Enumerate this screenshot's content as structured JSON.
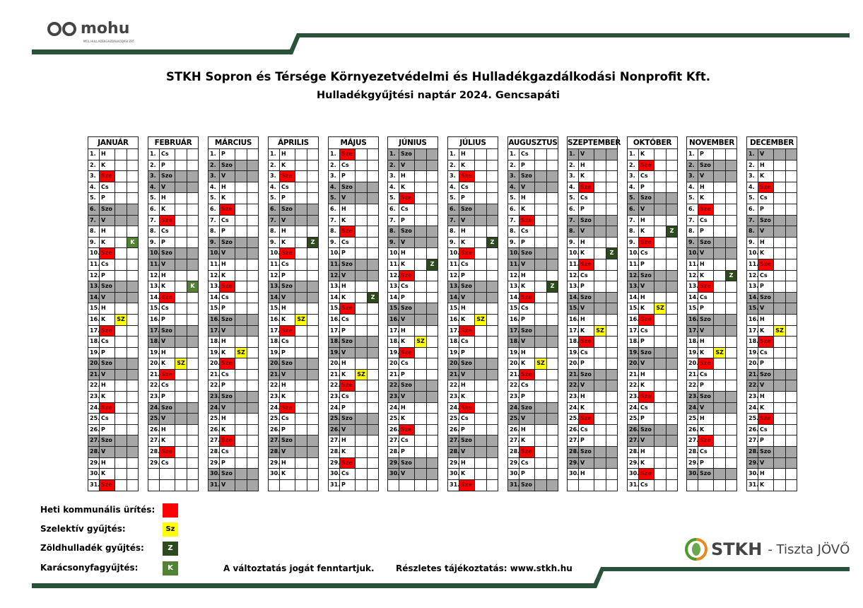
{
  "header": {
    "logo_text": "mohu",
    "logo_subtext": "MOL HULLADÉKGAZDÁLKODÁSI ZRT.",
    "title": "STKH Sopron és Térsége Környezetvédelmi és Hulladékgazdálkodási Nonprofit Kft.",
    "subtitle": "Hulladékgyűjtési naptár 2024. Gencsapáti"
  },
  "weekday_names": [
    "H",
    "K",
    "Sze",
    "Cs",
    "P",
    "Szo",
    "V"
  ],
  "marker_labels": {
    "sz": "SZ",
    "z": "Z",
    "k": "K"
  },
  "colors": {
    "red": "#ff0000",
    "yellow": "#ffff00",
    "dark_green": "#2d4a1e",
    "light_green": "#548235",
    "gray": "#a6a6a6",
    "bar": "#28533a"
  },
  "months": [
    {
      "name": "JANUÁR",
      "days": 31,
      "first_weekday": 0,
      "sz": [
        16
      ],
      "z": [],
      "k": [
        9
      ]
    },
    {
      "name": "FEBRUÁR",
      "days": 29,
      "first_weekday": 3,
      "sz": [
        20
      ],
      "z": [],
      "k": [
        13
      ]
    },
    {
      "name": "MÁRCIUS",
      "days": 31,
      "first_weekday": 4,
      "sz": [
        19
      ],
      "z": [],
      "k": []
    },
    {
      "name": "ÁPRILIS",
      "days": 30,
      "first_weekday": 0,
      "sz": [
        16
      ],
      "z": [
        9
      ],
      "k": []
    },
    {
      "name": "MÁJUS",
      "days": 31,
      "first_weekday": 2,
      "sz": [
        21
      ],
      "z": [
        14
      ],
      "k": []
    },
    {
      "name": "JÚNIUS",
      "days": 30,
      "first_weekday": 5,
      "sz": [
        18
      ],
      "z": [
        11
      ],
      "k": []
    },
    {
      "name": "JÚLIUS",
      "days": 31,
      "first_weekday": 0,
      "sz": [
        16
      ],
      "z": [
        9
      ],
      "k": []
    },
    {
      "name": "AUGUSZTUS",
      "days": 31,
      "first_weekday": 3,
      "sz": [
        20
      ],
      "z": [
        13
      ],
      "k": []
    },
    {
      "name": "SZEPTEMBER",
      "days": 30,
      "first_weekday": 6,
      "sz": [
        17
      ],
      "z": [
        10
      ],
      "k": []
    },
    {
      "name": "OKTÓBER",
      "days": 31,
      "first_weekday": 1,
      "sz": [
        15
      ],
      "z": [
        8
      ],
      "k": []
    },
    {
      "name": "NOVEMBER",
      "days": 30,
      "first_weekday": 4,
      "sz": [
        19
      ],
      "z": [
        12
      ],
      "k": []
    },
    {
      "name": "DECEMBER",
      "days": 31,
      "first_weekday": 6,
      "sz": [
        17
      ],
      "z": [],
      "k": []
    }
  ],
  "legend": {
    "weekly": "Heti kommunális ürítés:",
    "selective": "Szelektív gyűjtés:",
    "selective_box": "Sz",
    "green": "Zöldhulladék gyűjtés:",
    "green_box": "Z",
    "xmas": "Karácsonyfagyűjtés:",
    "xmas_box": "K"
  },
  "footer": {
    "notice": "A változtatás jogát fenntartjuk.",
    "info": "Részletes tájékoztatás: www.stkh.hu",
    "brand": "STKH",
    "slogan": "- Tiszta JÖVŐ"
  }
}
